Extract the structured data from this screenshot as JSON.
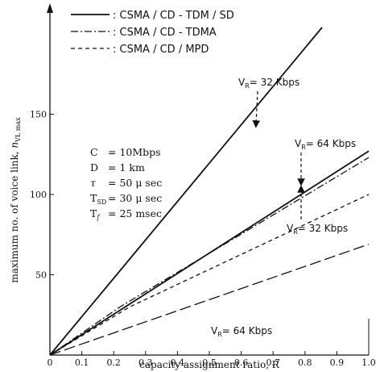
{
  "chart_data": {
    "type": "line",
    "title": "",
    "xlabel": "capacity assignment ratio, R",
    "ylabel": "maximum no. of voice link, n_VL max",
    "ylabel_main": "maximum no. of voice link, ",
    "ylabel_n": "n",
    "ylabel_sub": "VL max",
    "xlim": [
      0,
      1.0
    ],
    "ylim": [
      0,
      200
    ],
    "x_ticks": [
      0,
      0.1,
      0.2,
      0.3,
      0.4,
      0.5,
      0.6,
      0.7,
      0.8,
      0.9,
      1.0
    ],
    "x_tick_labels": [
      "0",
      "0.1",
      "0.2",
      "0.3",
      "0.4",
      "0.5",
      "0.6",
      "0.7",
      "0.8",
      "0.9",
      "1.0"
    ],
    "y_ticks": [
      50,
      100,
      150
    ],
    "y_tick_labels": [
      "50",
      "100",
      "150"
    ],
    "grid": false,
    "legend_position": "top",
    "legend": [
      {
        "symbol": "solid",
        "text": ": CSMA / CD - TDM / SD"
      },
      {
        "symbol": "dashdot",
        "text": ": CSMA / CD - TDMA"
      },
      {
        "symbol": "dashed",
        "text": ": CSMA / CD / MPD"
      }
    ],
    "series": [
      {
        "style": "solid",
        "x": [
          0,
          1.0
        ],
        "y": [
          0,
          239
        ]
      },
      {
        "style": "solid",
        "x": [
          0,
          1.0
        ],
        "y": [
          0,
          127
        ]
      },
      {
        "style": "dashdot",
        "x": [
          0,
          0.22,
          1.0
        ],
        "y": [
          0,
          30,
          123
        ]
      },
      {
        "style": "dashed",
        "x": [
          0,
          0.25,
          1.0
        ],
        "y": [
          0,
          30,
          100
        ]
      },
      {
        "style": "longdash",
        "x": [
          0,
          1.0
        ],
        "y": [
          0,
          69
        ]
      }
    ],
    "parameters": [
      {
        "symbol": "C",
        "value": "= 10Mbps"
      },
      {
        "symbol": "D",
        "value": "= 1 km"
      },
      {
        "symbol": "τ",
        "value": "= 50 μ sec"
      },
      {
        "symbol": "T",
        "sub": "SD",
        "value": "= 30 μ sec"
      },
      {
        "symbol": "T",
        "sub": "f",
        "value": "= 25 msec"
      }
    ],
    "annotations": [
      {
        "main": "V",
        "sub": "R",
        "value": "= 32 Kbps",
        "target": [
          0.67,
          160
        ]
      },
      {
        "main": "V",
        "sub": "R",
        "value": "= 64 Kbps",
        "target": [
          0.8,
          96
        ]
      },
      {
        "main": "V",
        "sub": "R",
        "value": "= 32 Kbps",
        "target": [
          0.8,
          95
        ]
      },
      {
        "main": "V",
        "sub": "R",
        "value": "= 64 Kbps",
        "target": null
      }
    ]
  }
}
